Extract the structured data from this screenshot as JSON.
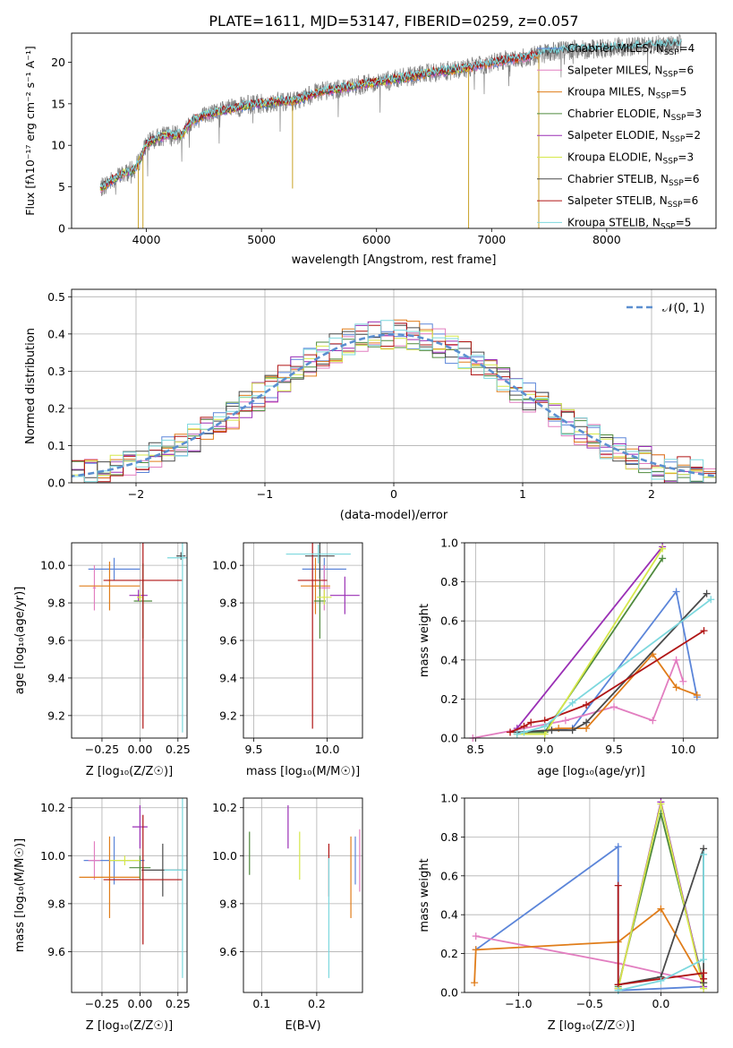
{
  "title": "PLATE=1611, MJD=53147, FIBERID=0259, z=0.057",
  "colors": {
    "chabrier_miles": "#5b85d9",
    "salpeter_miles": "#e27ec0",
    "kroupa_miles": "#e07d1a",
    "chabrier_elodie": "#4f8a3d",
    "salpeter_elodie": "#9a2fb5",
    "kroupa_elodie": "#d6e84a",
    "chabrier_stelib": "#4a4a4a",
    "salpeter_stelib": "#b01515",
    "kroupa_stelib": "#7dd8de",
    "observed": "#808080",
    "gaussian": "#5b8fd0",
    "grid": "#b0b0b0"
  },
  "chart_data": [
    {
      "id": "spectrum",
      "type": "line",
      "xlabel": "wavelength [Angstrom, rest frame]",
      "ylabel": "Flux [fλ10⁻¹⁷ erg cm⁻² s⁻¹ A⁻¹]",
      "xlim": [
        3350,
        8950
      ],
      "ylim": [
        0,
        23.5
      ],
      "xticks": [
        4000,
        5000,
        6000,
        7000,
        8000
      ],
      "yticks": [
        0,
        5,
        10,
        15,
        20
      ],
      "grid": false,
      "legend_position": "top-right",
      "legend": [
        {
          "name": "Chabrier MILES",
          "ssp": "4",
          "color_key": "chabrier_miles"
        },
        {
          "name": "Salpeter MILES",
          "ssp": "6",
          "color_key": "salpeter_miles"
        },
        {
          "name": "Kroupa MILES",
          "ssp": "5",
          "color_key": "kroupa_miles"
        },
        {
          "name": "Chabrier ELODIE",
          "ssp": "3",
          "color_key": "chabrier_elodie"
        },
        {
          "name": "Salpeter ELODIE",
          "ssp": "2",
          "color_key": "salpeter_elodie"
        },
        {
          "name": "Kroupa ELODIE",
          "ssp": "3",
          "color_key": "kroupa_elodie"
        },
        {
          "name": "Chabrier STELIB",
          "ssp": "6",
          "color_key": "chabrier_stelib"
        },
        {
          "name": "Salpeter STELIB",
          "ssp": "6",
          "color_key": "salpeter_stelib"
        },
        {
          "name": "Kroupa STELIB",
          "ssp": "5",
          "color_key": "kroupa_stelib"
        }
      ],
      "ssp_label": "N",
      "ssp_sub": "SSP",
      "continuum": {
        "x": [
          3600,
          3700,
          3800,
          3900,
          3950,
          4000,
          4100,
          4200,
          4300,
          4400,
          4500,
          4700,
          4900,
          5000,
          5100,
          5300,
          5500,
          5700,
          5900,
          6100,
          6300,
          6500,
          6700,
          6900,
          7100,
          7300,
          7500,
          7700,
          7900,
          8100,
          8300,
          8500,
          8650
        ],
        "y": [
          4.8,
          5.8,
          6.6,
          7.1,
          8.5,
          10.2,
          10.9,
          11.3,
          11.2,
          12.9,
          13.6,
          14.3,
          14.9,
          15.0,
          15.2,
          15.4,
          16.4,
          16.9,
          17.4,
          17.8,
          18.3,
          18.8,
          19.1,
          19.6,
          20.2,
          20.6,
          21.2,
          21.5,
          21.6,
          21.8,
          22.0,
          22.1,
          22.2
        ]
      },
      "dips": [
        {
          "x": 3930,
          "y": 0
        },
        {
          "x": 3970,
          "y": 0
        },
        {
          "x": 5270,
          "y": 4.8
        },
        {
          "x": 6800,
          "y": 0
        },
        {
          "x": 7410,
          "y": 0
        }
      ]
    },
    {
      "id": "residuals",
      "type": "histogram",
      "xlabel": "(data-model)/error",
      "ylabel": "Normed distribution",
      "xlim": [
        -2.5,
        2.5
      ],
      "ylim": [
        0,
        0.52
      ],
      "xticks": [
        -2,
        -1,
        0,
        1,
        2
      ],
      "yticks": [
        0.0,
        0.1,
        0.2,
        0.3,
        0.4,
        0.5
      ],
      "grid": true,
      "legend_position": "top-right",
      "gaussian_label": "𝒩(0, 1)",
      "bin_width": 0.1
    },
    {
      "id": "age_vs_Z",
      "type": "scatter",
      "xlabel": "Z [log₁₀(Z/Z☉)]",
      "ylabel": "age  [log₁₀(age/yr)]",
      "xlim": [
        -0.45,
        0.31
      ],
      "ylim": [
        9.08,
        10.12
      ],
      "xticks": [
        -0.25,
        0.0,
        0.25
      ],
      "yticks": [
        9.2,
        9.4,
        9.6,
        9.8,
        10.0
      ],
      "grid": true,
      "points": [
        {
          "series": "chabrier_miles",
          "x": -0.17,
          "xerr": 0.17,
          "y": 9.98,
          "yerr": 0.06
        },
        {
          "series": "salpeter_miles",
          "x": -0.3,
          "xerr": 0.01,
          "y": 9.88,
          "yerr": 0.12
        },
        {
          "series": "kroupa_miles",
          "x": -0.2,
          "xerr": 0.2,
          "y": 9.89,
          "yerr": 0.13
        },
        {
          "series": "chabrier_elodie",
          "x": 0.02,
          "xerr": 0.06,
          "y": 9.81,
          "yerr": 0.2
        },
        {
          "series": "salpeter_elodie",
          "x": -0.01,
          "xerr": 0.06,
          "y": 9.84,
          "yerr": 0.03
        },
        {
          "series": "kroupa_elodie",
          "x": 0.0,
          "xerr": 0.02,
          "y": 9.83,
          "yerr": 0.02
        },
        {
          "series": "chabrier_stelib",
          "x": 0.27,
          "xerr": 0.03,
          "y": 10.05,
          "yerr": 0.02
        },
        {
          "series": "salpeter_stelib",
          "x": 0.02,
          "xerr": 0.26,
          "y": 9.92,
          "yerr": 0.79
        },
        {
          "series": "kroupa_stelib",
          "x": 0.28,
          "xerr": 0.1,
          "y": 10.04,
          "yerr": 0.93
        }
      ]
    },
    {
      "id": "age_vs_mass",
      "type": "scatter",
      "xlabel": "mass [log₁₀(M/M☉)]",
      "ylabel": "",
      "xlim": [
        9.43,
        10.24
      ],
      "ylim": [
        9.08,
        10.12
      ],
      "xticks": [
        9.5,
        10.0
      ],
      "yticks": [
        9.2,
        9.4,
        9.6,
        9.8,
        10.0
      ],
      "grid": true,
      "points": [
        {
          "series": "chabrier_miles",
          "x": 9.98,
          "xerr": 0.15,
          "y": 9.98,
          "yerr": 0.06
        },
        {
          "series": "salpeter_miles",
          "x": 9.98,
          "xerr": 0.04,
          "y": 9.88,
          "yerr": 0.12
        },
        {
          "series": "kroupa_miles",
          "x": 9.92,
          "xerr": 0.1,
          "y": 9.89,
          "yerr": 0.15
        },
        {
          "series": "chabrier_elodie",
          "x": 9.95,
          "xerr": 0.04,
          "y": 9.81,
          "yerr": 0.2
        },
        {
          "series": "salpeter_elodie",
          "x": 10.12,
          "xerr": 0.1,
          "y": 9.84,
          "yerr": 0.1
        },
        {
          "series": "kroupa_elodie",
          "x": 9.98,
          "xerr": 0.05,
          "y": 9.83,
          "yerr": 0.04
        },
        {
          "series": "chabrier_stelib",
          "x": 9.95,
          "xerr": 0.1,
          "y": 10.05,
          "yerr": 0.12
        },
        {
          "series": "salpeter_stelib",
          "x": 9.9,
          "xerr": 0.1,
          "y": 9.92,
          "yerr": 0.79
        },
        {
          "series": "kroupa_stelib",
          "x": 9.94,
          "xerr": 0.22,
          "y": 10.06,
          "yerr": 0.05
        }
      ]
    },
    {
      "id": "weight_vs_age",
      "type": "line",
      "xlabel": "age  [log₁₀(age/yr)]",
      "ylabel": "mass weight",
      "xlim": [
        8.42,
        10.25
      ],
      "ylim": [
        0,
        1
      ],
      "xticks": [
        8.5,
        9.0,
        9.5,
        10.0
      ],
      "yticks": [
        0.0,
        0.2,
        0.4,
        0.6,
        0.8,
        1.0
      ],
      "grid": true,
      "series": [
        {
          "name": "chabrier_miles",
          "x": [
            8.8,
            9.2,
            9.95,
            10.1
          ],
          "y": [
            0.03,
            0.05,
            0.75,
            0.21
          ]
        },
        {
          "name": "salpeter_miles",
          "x": [
            8.48,
            9.15,
            9.5,
            9.78,
            9.95,
            10.0
          ],
          "y": [
            0.0,
            0.09,
            0.16,
            0.09,
            0.4,
            0.29
          ]
        },
        {
          "name": "kroupa_miles",
          "x": [
            8.8,
            9.1,
            9.3,
            9.78,
            9.95,
            10.1
          ],
          "y": [
            0.02,
            0.05,
            0.05,
            0.43,
            0.26,
            0.22
          ]
        },
        {
          "name": "chabrier_elodie",
          "x": [
            8.8,
            9.0,
            9.85
          ],
          "y": [
            0.03,
            0.03,
            0.92
          ]
        },
        {
          "name": "salpeter_elodie",
          "x": [
            8.8,
            9.85
          ],
          "y": [
            0.05,
            0.98
          ]
        },
        {
          "name": "kroupa_elodie",
          "x": [
            8.8,
            9.0,
            9.85
          ],
          "y": [
            0.02,
            0.02,
            0.97
          ]
        },
        {
          "name": "chabrier_stelib",
          "x": [
            8.8,
            9.05,
            9.2,
            9.3,
            10.17
          ],
          "y": [
            0.03,
            0.04,
            0.04,
            0.08,
            0.74
          ]
        },
        {
          "name": "salpeter_stelib",
          "x": [
            8.75,
            8.85,
            8.9,
            9.0,
            9.3,
            10.15
          ],
          "y": [
            0.03,
            0.06,
            0.08,
            0.09,
            0.17,
            0.55
          ]
        },
        {
          "name": "kroupa_stelib",
          "x": [
            8.8,
            8.85,
            9.0,
            9.2,
            10.2
          ],
          "y": [
            0.02,
            0.03,
            0.06,
            0.18,
            0.71
          ]
        }
      ]
    },
    {
      "id": "mass_vs_Z",
      "type": "scatter",
      "xlabel": "Z [log₁₀(Z/Z☉)]",
      "ylabel": "mass [log₁₀(M/M☉)]",
      "xlim": [
        -0.45,
        0.31
      ],
      "ylim": [
        9.43,
        10.24
      ],
      "xticks": [
        -0.25,
        0.0,
        0.25
      ],
      "yticks": [
        9.6,
        9.8,
        10.0,
        10.2
      ],
      "grid": true,
      "points": [
        {
          "series": "chabrier_miles",
          "x": -0.17,
          "xerr": 0.2,
          "y": 9.98,
          "yerr": 0.1
        },
        {
          "series": "salpeter_miles",
          "x": -0.3,
          "xerr": 0.04,
          "y": 9.98,
          "yerr": 0.08
        },
        {
          "series": "kroupa_miles",
          "x": -0.2,
          "xerr": 0.2,
          "y": 9.91,
          "yerr": 0.17
        },
        {
          "series": "chabrier_elodie",
          "x": 0.0,
          "xerr": 0.07,
          "y": 9.95,
          "yerr": 0.05
        },
        {
          "series": "salpeter_elodie",
          "x": 0.0,
          "xerr": 0.05,
          "y": 10.12,
          "yerr": 0.09
        },
        {
          "series": "kroupa_elodie",
          "x": -0.1,
          "xerr": 0.1,
          "y": 9.98,
          "yerr": 0.02
        },
        {
          "series": "chabrier_stelib",
          "x": 0.15,
          "xerr": 0.14,
          "y": 9.94,
          "yerr": 0.11
        },
        {
          "series": "salpeter_stelib",
          "x": 0.02,
          "xerr": 0.26,
          "y": 9.9,
          "yerr": 0.27
        },
        {
          "series": "kroupa_stelib",
          "x": 0.28,
          "xerr": 0.12,
          "y": 9.94,
          "yerr": 0.45
        }
      ]
    },
    {
      "id": "mass_vs_ebv",
      "type": "scatter",
      "xlabel": "E(B-V)",
      "ylabel": "",
      "xlim": [
        0.067,
        0.283
      ],
      "ylim": [
        9.43,
        10.24
      ],
      "xticks": [
        0.1,
        0.2
      ],
      "yticks": [
        9.6,
        9.8,
        10.0,
        10.2
      ],
      "grid": true,
      "points": [
        {
          "series": "chabrier_elodie",
          "x": 0.078,
          "y": 10.01,
          "yerr": 0.09
        },
        {
          "series": "salpeter_elodie",
          "x": 0.148,
          "y": 10.12,
          "yerr": 0.09
        },
        {
          "series": "kroupa_elodie",
          "x": 0.169,
          "y": 10.0,
          "yerr": 0.1
        },
        {
          "series": "salpeter_stelib",
          "x": 0.222,
          "y": 9.94,
          "yerr": 0.11
        },
        {
          "series": "kroupa_stelib",
          "x": 0.222,
          "y": 9.74,
          "yerr": 0.25
        },
        {
          "series": "kroupa_miles",
          "x": 0.262,
          "y": 9.91,
          "yerr": 0.17
        },
        {
          "series": "chabrier_miles",
          "x": 0.27,
          "y": 9.98,
          "yerr": 0.1
        },
        {
          "series": "salpeter_miles",
          "x": 0.278,
          "y": 9.98,
          "yerr": 0.13
        }
      ]
    },
    {
      "id": "weight_vs_Z",
      "type": "line",
      "xlabel": "Z [log₁₀(Z/Z☉)]",
      "ylabel": "mass weight",
      "xlim": [
        -1.38,
        0.4
      ],
      "ylim": [
        0,
        1
      ],
      "xticks": [
        -1.0,
        -0.5,
        0.0
      ],
      "yticks": [
        0.0,
        0.2,
        0.4,
        0.6,
        0.8,
        1.0
      ],
      "grid": true,
      "series": [
        {
          "name": "chabrier_miles",
          "x": [
            -1.3,
            -0.3,
            -0.3,
            0.3
          ],
          "y": [
            0.22,
            0.75,
            0.01,
            0.03
          ]
        },
        {
          "name": "salpeter_miles",
          "x": [
            -1.3,
            -0.3,
            0.3
          ],
          "y": [
            0.29,
            0.15,
            0.05
          ]
        },
        {
          "name": "kroupa_miles",
          "x": [
            -1.31,
            -1.3,
            -0.3,
            0.0,
            0.3,
            0.3
          ],
          "y": [
            0.05,
            0.22,
            0.26,
            0.43,
            0.05,
            0.1
          ]
        },
        {
          "name": "chabrier_elodie",
          "x": [
            -0.3,
            0.0,
            0.3
          ],
          "y": [
            0.03,
            0.92,
            0.05
          ]
        },
        {
          "name": "salpeter_elodie",
          "x": [
            -0.3,
            0.0,
            0.3
          ],
          "y": [
            0.02,
            0.98,
            0.03
          ]
        },
        {
          "name": "kroupa_elodie",
          "x": [
            -0.3,
            0.0,
            0.3
          ],
          "y": [
            0.02,
            0.97,
            0.02
          ]
        },
        {
          "name": "chabrier_stelib",
          "x": [
            -0.3,
            0.0,
            0.3,
            0.3
          ],
          "y": [
            0.04,
            0.08,
            0.74,
            0.05
          ]
        },
        {
          "name": "salpeter_stelib",
          "x": [
            -0.3,
            -0.3,
            0.3,
            0.3
          ],
          "y": [
            0.55,
            0.04,
            0.1,
            0.07
          ]
        },
        {
          "name": "kroupa_stelib",
          "x": [
            -0.3,
            0.0,
            0.3,
            0.3
          ],
          "y": [
            0.01,
            0.06,
            0.17,
            0.71
          ]
        }
      ]
    }
  ]
}
